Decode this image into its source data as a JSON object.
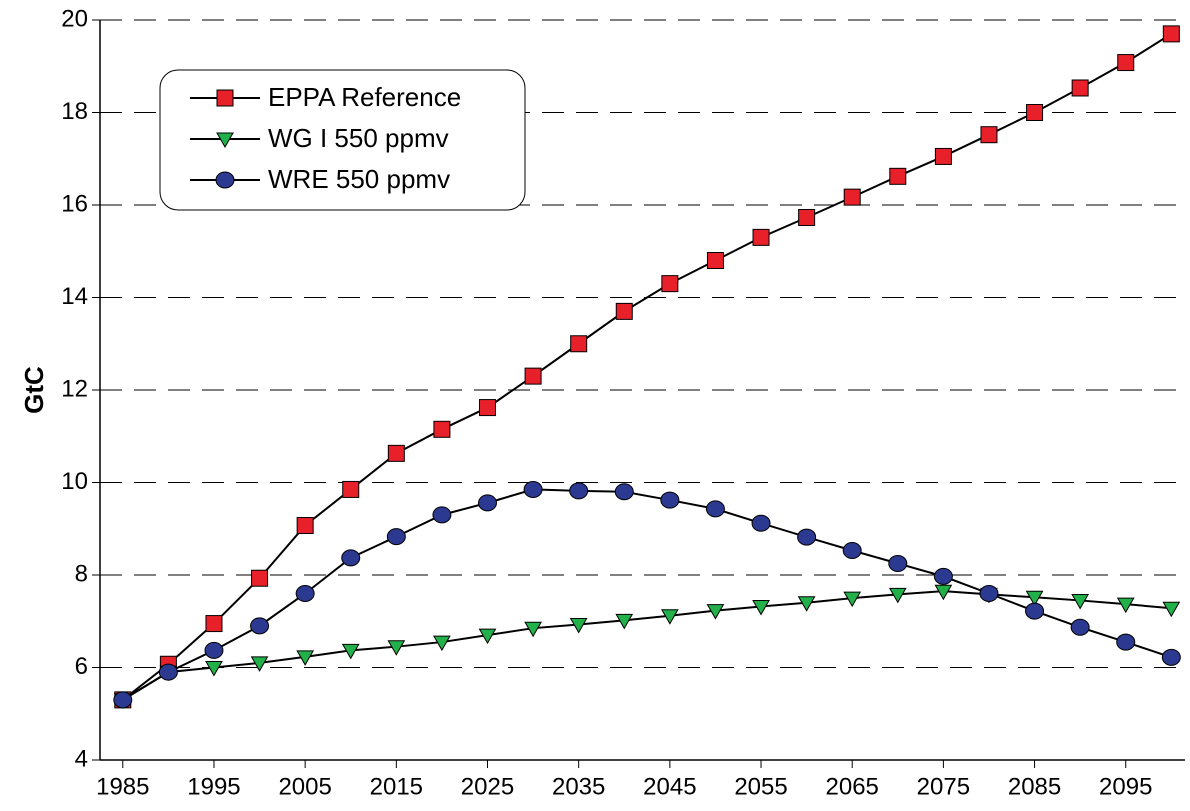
{
  "chart_data": {
    "type": "line",
    "y_label": "GtC",
    "x": [
      1985,
      1990,
      1995,
      2000,
      2005,
      2010,
      2015,
      2020,
      2025,
      2030,
      2035,
      2040,
      2045,
      2050,
      2055,
      2060,
      2065,
      2070,
      2075,
      2080,
      2085,
      2090,
      2095,
      2100
    ],
    "xlim": [
      1982.5,
      2101.5
    ],
    "xticks": [
      1985,
      1995,
      2005,
      2015,
      2025,
      2035,
      2045,
      2055,
      2065,
      2075,
      2085,
      2095
    ],
    "ylim": [
      4,
      20
    ],
    "yticks": [
      4,
      6,
      8,
      10,
      12,
      14,
      16,
      18,
      20
    ],
    "grid": true,
    "legend": "upper left",
    "series": [
      {
        "name": "EPPA Reference",
        "color": "#e8202a",
        "marker": "square",
        "values": [
          5.3,
          6.07,
          6.95,
          7.93,
          9.07,
          9.85,
          10.63,
          11.15,
          11.62,
          12.3,
          13.0,
          13.7,
          14.3,
          14.8,
          15.3,
          15.73,
          16.17,
          16.62,
          17.05,
          17.52,
          18.0,
          18.53,
          19.08,
          19.7
        ]
      },
      {
        "name": "WG I 550 ppmv",
        "color": "#22b04a",
        "marker": "triangle",
        "values": [
          5.3,
          5.9,
          6.0,
          6.1,
          6.23,
          6.37,
          6.45,
          6.55,
          6.7,
          6.85,
          6.93,
          7.02,
          7.12,
          7.23,
          7.32,
          7.4,
          7.5,
          7.58,
          7.65,
          7.58,
          7.52,
          7.45,
          7.37,
          7.28
        ]
      },
      {
        "name": "WRE 550 ppmv",
        "color": "#2b3990",
        "marker": "circle",
        "values": [
          5.3,
          5.9,
          6.37,
          6.9,
          7.6,
          8.37,
          8.83,
          9.3,
          9.56,
          9.85,
          9.82,
          9.8,
          9.62,
          9.43,
          9.12,
          8.82,
          8.53,
          8.25,
          7.97,
          7.6,
          7.22,
          6.87,
          6.55,
          6.22
        ]
      }
    ]
  }
}
